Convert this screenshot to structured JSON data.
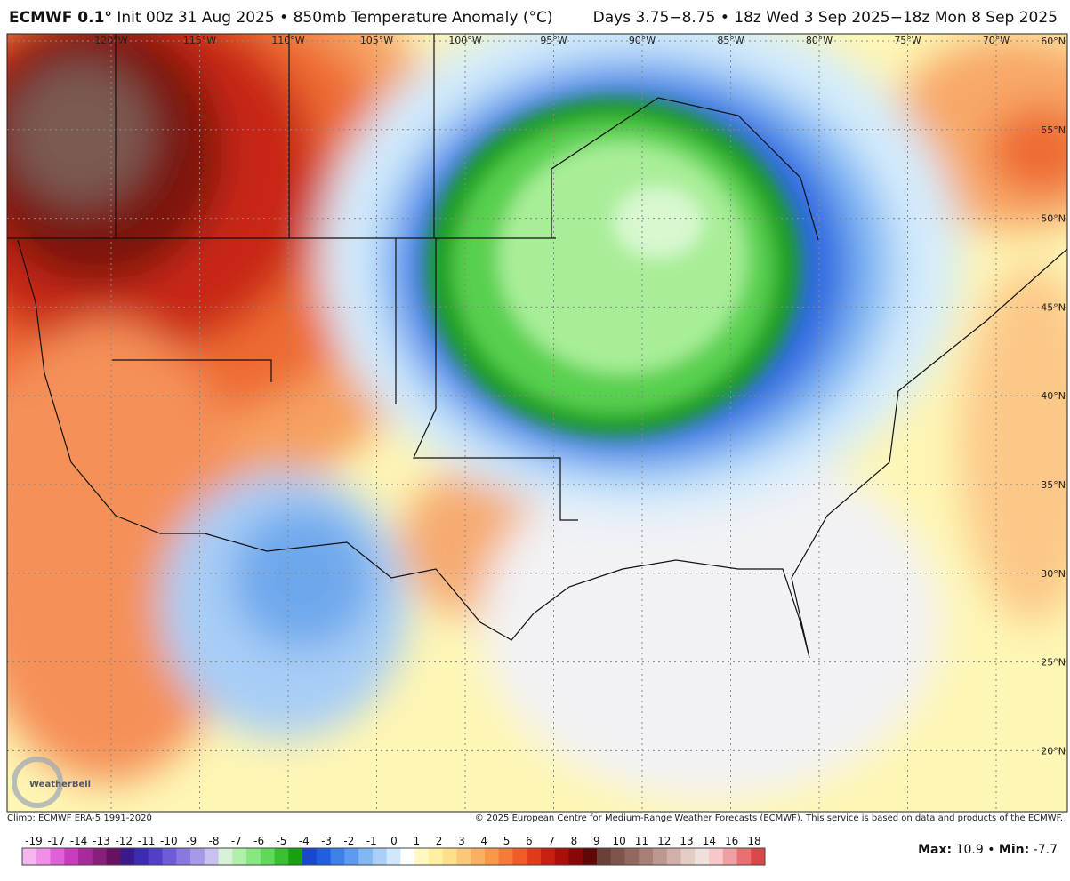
{
  "header": {
    "model": "ECMWF 0.1°",
    "left": "Init 00z 31 Aug 2025 • 850mb Temperature Anomaly (°C)",
    "right": "Days 3.75−8.75 • 18z Wed 3 Sep 2025−18z Mon 8 Sep 2025"
  },
  "map": {
    "longitudes": [
      "120°W",
      "115°W",
      "110°W",
      "105°W",
      "100°W",
      "95°W",
      "90°W",
      "85°W",
      "80°W",
      "75°W",
      "70°W"
    ],
    "latitudes": [
      "60°N",
      "55°N",
      "50°N",
      "45°N",
      "40°N",
      "35°N",
      "30°N",
      "25°N",
      "20°N"
    ],
    "logo": "WeatherBell"
  },
  "footer": {
    "climo": "Climo: ECMWF ERA-5 1991-2020",
    "copyright": "© 2025 European Centre for Medium-Range Weather Forecasts (ECMWF). This service is based on data and products of the ECMWF."
  },
  "colorbar": {
    "labels": [
      -19,
      -17,
      -14,
      -13,
      -12,
      -11,
      -10,
      -9,
      -8,
      -7,
      -6,
      -5,
      -4,
      -3,
      -2,
      -1,
      0,
      1,
      2,
      3,
      4,
      5,
      6,
      7,
      8,
      9,
      10,
      11,
      12,
      13,
      14,
      16,
      18
    ],
    "colors": [
      "#f7b6f0",
      "#f08ee8",
      "#e060d8",
      "#c83cc0",
      "#a82a9c",
      "#8a1e7c",
      "#6a1060",
      "#3a1a8a",
      "#3c2cb0",
      "#5040c8",
      "#6c5cd8",
      "#8878e0",
      "#a898e8",
      "#c8c0f0",
      "#d8f0d8",
      "#b0f0a8",
      "#88e880",
      "#60d858",
      "#38c030",
      "#18a010",
      "#1848d0",
      "#2060e0",
      "#3c80e8",
      "#5c9cf0",
      "#80b8f4",
      "#a8d0f8",
      "#d0e8fc",
      "#ffffff",
      "#fff8c0",
      "#fff0a0",
      "#fde088",
      "#fcc878",
      "#fab060",
      "#f89848",
      "#f47c38",
      "#ee5c28",
      "#e03c18",
      "#c82010",
      "#a81008",
      "#880808",
      "#600808",
      "#6a4038",
      "#80544a",
      "#94685c",
      "#a88078",
      "#bc9890",
      "#d0b0a8",
      "#e4ccc4",
      "#f0e0dc",
      "#f8c8c8",
      "#f0a0a0",
      "#e87070",
      "#d84848"
    ]
  },
  "stats": {
    "max_label": "Max:",
    "max": 10.9,
    "separator": "•",
    "min_label": "Min:",
    "min": -7.7
  }
}
